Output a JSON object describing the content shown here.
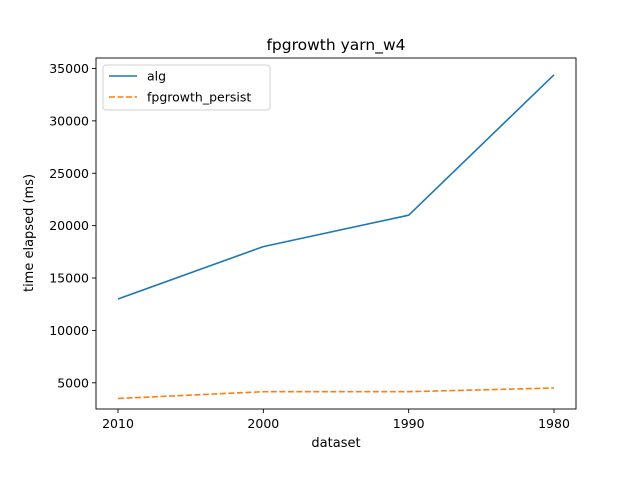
{
  "chart_data": {
    "type": "line",
    "title": "fpgrowth yarn_w4",
    "xlabel": "dataset",
    "ylabel": "time elapsed (ms)",
    "categories": [
      "2010",
      "2000",
      "1990",
      "1980"
    ],
    "ylim": [
      2500,
      36000
    ],
    "yticks": [
      5000,
      10000,
      15000,
      20000,
      25000,
      30000,
      35000
    ],
    "legend_position": "top-left",
    "grid": false,
    "series": [
      {
        "name": "alg",
        "values": [
          13000,
          18000,
          21000,
          34400
        ],
        "color": "#1f77b4",
        "style": "solid"
      },
      {
        "name": "fpgrowth_persist",
        "values": [
          3500,
          4150,
          4150,
          4500
        ],
        "color": "#ff7f0e",
        "style": "dashed"
      }
    ]
  }
}
